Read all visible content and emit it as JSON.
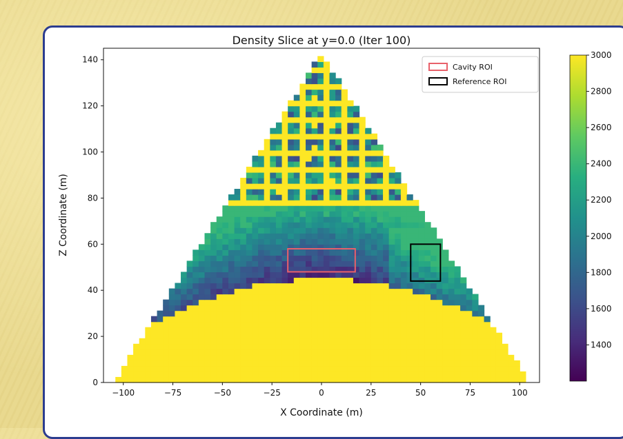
{
  "chart_data": {
    "type": "heatmap",
    "title": "Density Slice at y=0.0 (Iter 100)",
    "xlabel": "X Coordinate (m)",
    "ylabel": "Z Coordinate (m)",
    "xlim": [
      -110,
      110
    ],
    "ylim": [
      0,
      145
    ],
    "x_ticks": [
      -100,
      -75,
      -50,
      -25,
      0,
      25,
      50,
      75,
      100
    ],
    "x_tick_labels": [
      "−100",
      "−75",
      "−50",
      "−25",
      "0",
      "25",
      "50",
      "75",
      "100"
    ],
    "y_ticks": [
      0,
      20,
      40,
      60,
      80,
      100,
      120,
      140
    ],
    "y_tick_labels": [
      "0",
      "20",
      "40",
      "60",
      "80",
      "100",
      "120",
      "140"
    ],
    "colorbar": {
      "min": 1200,
      "max": 3000,
      "ticks": [
        1400,
        1600,
        1800,
        2000,
        2200,
        2400,
        2600,
        2800,
        3000
      ],
      "tick_labels": [
        "1400",
        "1600",
        "1800",
        "2000",
        "2200",
        "2400",
        "2600",
        "2800",
        "3000"
      ],
      "colormap": "viridis"
    },
    "region": {
      "apex": [
        0,
        143
      ],
      "base_left": [
        -105,
        0
      ],
      "base_right": [
        105,
        0
      ],
      "solid_dome_peak": [
        0,
        47
      ],
      "upper_lattice_from_z": 78
    },
    "rois": [
      {
        "name": "Cavity ROI",
        "x": [
          -17,
          17
        ],
        "z": [
          48,
          58
        ],
        "color": "#e8606a"
      },
      {
        "name": "Reference ROI",
        "x": [
          45,
          60
        ],
        "z": [
          44,
          60
        ],
        "color": "#000000"
      }
    ],
    "legend": {
      "location": "upper right",
      "entries": [
        "Cavity ROI",
        "Reference ROI"
      ]
    }
  }
}
